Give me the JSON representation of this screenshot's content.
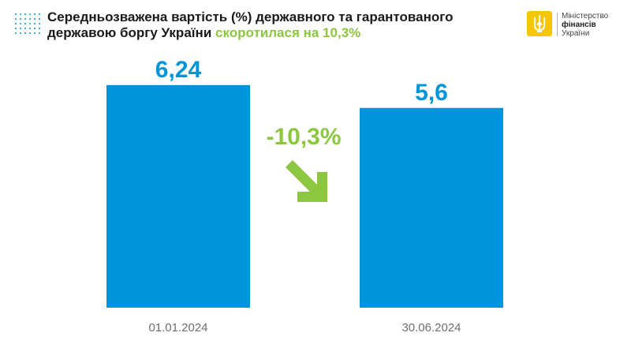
{
  "header": {
    "title_main": "Середньозважена вартість (%) державного та гарантованого державою боргу України",
    "title_highlight": "скоротилася на 10,3%"
  },
  "logo": {
    "line1": "Міністерство",
    "line2": "фінансів",
    "line3": "України"
  },
  "chart_data": {
    "type": "bar",
    "categories": [
      "01.01.2024",
      "30.06.2024"
    ],
    "values": [
      6.24,
      5.6
    ],
    "data_labels": [
      "6,24",
      "5,6"
    ],
    "change_label": "-10,3%",
    "ylim": [
      0,
      6.9
    ],
    "title": "Середньозважена вартість (%) державного та гарантованого державою боргу України скоротилася на 10,3%",
    "xlabel": "",
    "ylabel": "",
    "grid": false,
    "colors": {
      "bar": "#0095DA",
      "label": "#0095DA",
      "change": "#8DC63F",
      "axis_text": "#6D6E71"
    }
  }
}
